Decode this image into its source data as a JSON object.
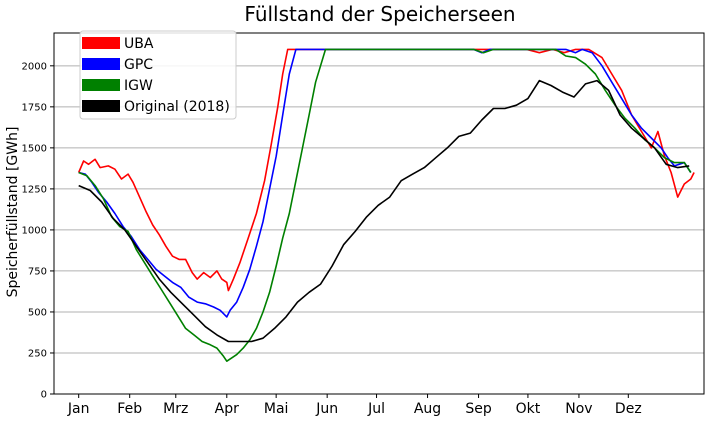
{
  "chart_data": {
    "type": "line",
    "title": "Füllstand der Speicherseen",
    "xlabel": "",
    "ylabel": "Speicherfüllstand [GWh]",
    "x_unit": "day_of_year",
    "xlim": [
      -15,
      380
    ],
    "ylim": [
      0,
      2200
    ],
    "yticks": [
      0,
      250,
      500,
      750,
      1000,
      1250,
      1500,
      1750,
      2000
    ],
    "xticks": [
      {
        "label": "Jan",
        "x": 0
      },
      {
        "label": "Feb",
        "x": 31
      },
      {
        "label": "Mrz",
        "x": 59
      },
      {
        "label": "Apr",
        "x": 90
      },
      {
        "label": "Mai",
        "x": 120
      },
      {
        "label": "Jun",
        "x": 151
      },
      {
        "label": "Jul",
        "x": 181
      },
      {
        "label": "Aug",
        "x": 212
      },
      {
        "label": "Sep",
        "x": 243
      },
      {
        "label": "Okt",
        "x": 273
      },
      {
        "label": "Nov",
        "x": 304
      },
      {
        "label": "Dez",
        "x": 334
      }
    ],
    "grid": "horizontal",
    "legend_position": "top-left",
    "series": [
      {
        "name": "UBA",
        "color": "#ff0000",
        "points": [
          [
            0,
            1350
          ],
          [
            3,
            1420
          ],
          [
            6,
            1400
          ],
          [
            10,
            1430
          ],
          [
            13,
            1380
          ],
          [
            18,
            1390
          ],
          [
            22,
            1370
          ],
          [
            26,
            1310
          ],
          [
            30,
            1340
          ],
          [
            33,
            1290
          ],
          [
            37,
            1200
          ],
          [
            41,
            1110
          ],
          [
            45,
            1030
          ],
          [
            49,
            970
          ],
          [
            53,
            900
          ],
          [
            57,
            840
          ],
          [
            61,
            820
          ],
          [
            65,
            820
          ],
          [
            69,
            740
          ],
          [
            72,
            700
          ],
          [
            76,
            740
          ],
          [
            80,
            710
          ],
          [
            84,
            750
          ],
          [
            87,
            700
          ],
          [
            90,
            680
          ],
          [
            91,
            630
          ],
          [
            94,
            700
          ],
          [
            98,
            800
          ],
          [
            103,
            950
          ],
          [
            108,
            1100
          ],
          [
            113,
            1300
          ],
          [
            117,
            1520
          ],
          [
            121,
            1750
          ],
          [
            124,
            1950
          ],
          [
            127,
            2100
          ],
          [
            260,
            2100
          ],
          [
            272,
            2100
          ],
          [
            280,
            2080
          ],
          [
            288,
            2100
          ],
          [
            295,
            2080
          ],
          [
            302,
            2100
          ],
          [
            310,
            2100
          ],
          [
            318,
            2050
          ],
          [
            324,
            1950
          ],
          [
            330,
            1850
          ],
          [
            336,
            1700
          ],
          [
            342,
            1600
          ],
          [
            348,
            1500
          ],
          [
            352,
            1600
          ],
          [
            356,
            1450
          ],
          [
            360,
            1350
          ],
          [
            364,
            1200
          ],
          [
            368,
            1280
          ],
          [
            372,
            1310
          ],
          [
            374,
            1350
          ]
        ]
      },
      {
        "name": "GPC",
        "color": "#0000ff",
        "points": [
          [
            0,
            1350
          ],
          [
            4,
            1340
          ],
          [
            8,
            1290
          ],
          [
            12,
            1230
          ],
          [
            17,
            1170
          ],
          [
            22,
            1100
          ],
          [
            27,
            1020
          ],
          [
            32,
            960
          ],
          [
            37,
            880
          ],
          [
            42,
            820
          ],
          [
            47,
            760
          ],
          [
            52,
            720
          ],
          [
            57,
            680
          ],
          [
            62,
            650
          ],
          [
            67,
            590
          ],
          [
            72,
            560
          ],
          [
            77,
            550
          ],
          [
            82,
            530
          ],
          [
            86,
            510
          ],
          [
            90,
            470
          ],
          [
            92,
            510
          ],
          [
            96,
            560
          ],
          [
            100,
            650
          ],
          [
            104,
            760
          ],
          [
            108,
            900
          ],
          [
            112,
            1050
          ],
          [
            116,
            1250
          ],
          [
            120,
            1450
          ],
          [
            124,
            1700
          ],
          [
            128,
            1950
          ],
          [
            132,
            2100
          ],
          [
            240,
            2100
          ],
          [
            245,
            2080
          ],
          [
            250,
            2100
          ],
          [
            290,
            2100
          ],
          [
            296,
            2100
          ],
          [
            302,
            2080
          ],
          [
            306,
            2100
          ],
          [
            312,
            2080
          ],
          [
            318,
            2000
          ],
          [
            324,
            1900
          ],
          [
            330,
            1800
          ],
          [
            336,
            1700
          ],
          [
            342,
            1620
          ],
          [
            348,
            1560
          ],
          [
            354,
            1500
          ],
          [
            358,
            1440
          ],
          [
            362,
            1390
          ],
          [
            368,
            1410
          ],
          [
            372,
            1350
          ]
        ]
      },
      {
        "name": "IGW",
        "color": "#008000",
        "points": [
          [
            0,
            1350
          ],
          [
            5,
            1330
          ],
          [
            10,
            1270
          ],
          [
            15,
            1190
          ],
          [
            20,
            1080
          ],
          [
            25,
            1020
          ],
          [
            30,
            990
          ],
          [
            35,
            880
          ],
          [
            40,
            800
          ],
          [
            45,
            720
          ],
          [
            50,
            640
          ],
          [
            55,
            560
          ],
          [
            60,
            480
          ],
          [
            65,
            400
          ],
          [
            70,
            360
          ],
          [
            75,
            320
          ],
          [
            80,
            300
          ],
          [
            84,
            280
          ],
          [
            88,
            230
          ],
          [
            90,
            200
          ],
          [
            93,
            220
          ],
          [
            96,
            240
          ],
          [
            100,
            280
          ],
          [
            104,
            330
          ],
          [
            108,
            400
          ],
          [
            112,
            500
          ],
          [
            116,
            620
          ],
          [
            120,
            780
          ],
          [
            124,
            950
          ],
          [
            128,
            1100
          ],
          [
            132,
            1300
          ],
          [
            136,
            1500
          ],
          [
            140,
            1700
          ],
          [
            144,
            1900
          ],
          [
            150,
            2100
          ],
          [
            240,
            2100
          ],
          [
            246,
            2080
          ],
          [
            252,
            2100
          ],
          [
            290,
            2100
          ],
          [
            296,
            2060
          ],
          [
            302,
            2050
          ],
          [
            308,
            2010
          ],
          [
            314,
            1950
          ],
          [
            320,
            1850
          ],
          [
            326,
            1760
          ],
          [
            332,
            1680
          ],
          [
            338,
            1620
          ],
          [
            344,
            1550
          ],
          [
            350,
            1500
          ],
          [
            356,
            1440
          ],
          [
            362,
            1410
          ],
          [
            368,
            1410
          ],
          [
            372,
            1350
          ]
        ]
      },
      {
        "name": "Original (2018)",
        "color": "#000000",
        "points": [
          [
            0,
            1270
          ],
          [
            7,
            1240
          ],
          [
            14,
            1170
          ],
          [
            21,
            1070
          ],
          [
            28,
            1000
          ],
          [
            35,
            900
          ],
          [
            42,
            800
          ],
          [
            49,
            700
          ],
          [
            56,
            620
          ],
          [
            63,
            550
          ],
          [
            70,
            480
          ],
          [
            77,
            410
          ],
          [
            84,
            360
          ],
          [
            91,
            320
          ],
          [
            98,
            320
          ],
          [
            105,
            320
          ],
          [
            112,
            340
          ],
          [
            119,
            400
          ],
          [
            126,
            470
          ],
          [
            133,
            560
          ],
          [
            140,
            620
          ],
          [
            147,
            670
          ],
          [
            154,
            780
          ],
          [
            161,
            910
          ],
          [
            168,
            990
          ],
          [
            175,
            1080
          ],
          [
            182,
            1150
          ],
          [
            189,
            1200
          ],
          [
            196,
            1300
          ],
          [
            203,
            1340
          ],
          [
            210,
            1380
          ],
          [
            217,
            1440
          ],
          [
            224,
            1500
          ],
          [
            231,
            1570
          ],
          [
            238,
            1590
          ],
          [
            245,
            1670
          ],
          [
            252,
            1740
          ],
          [
            259,
            1740
          ],
          [
            266,
            1760
          ],
          [
            273,
            1800
          ],
          [
            280,
            1910
          ],
          [
            287,
            1880
          ],
          [
            294,
            1840
          ],
          [
            301,
            1810
          ],
          [
            308,
            1890
          ],
          [
            315,
            1910
          ],
          [
            322,
            1850
          ],
          [
            329,
            1700
          ],
          [
            336,
            1620
          ],
          [
            343,
            1560
          ],
          [
            350,
            1500
          ],
          [
            357,
            1400
          ],
          [
            364,
            1380
          ],
          [
            371,
            1390
          ]
        ]
      }
    ]
  }
}
